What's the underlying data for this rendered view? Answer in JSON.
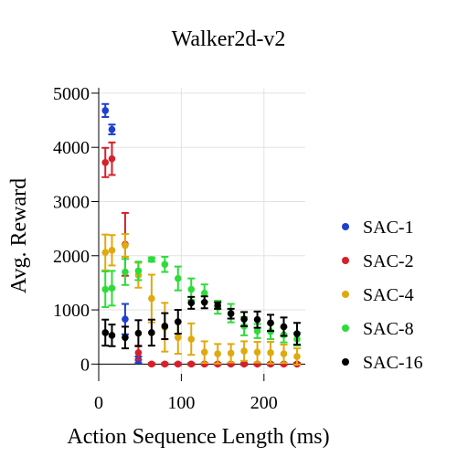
{
  "chart_data": {
    "type": "scatter",
    "title": "Walker2d-v2",
    "xlabel": "Action Sequence Length (ms)",
    "ylabel": "Avg. Reward",
    "xlim": [
      0,
      250
    ],
    "ylim": [
      -180,
      5100
    ],
    "xticks": [
      0,
      100,
      200
    ],
    "yticks": [
      0,
      1000,
      2000,
      3000,
      4000,
      5000
    ],
    "grid": true,
    "legend": "right",
    "series": [
      {
        "name": "SAC-1",
        "color": "#1f3fd0",
        "x": [
          8,
          16,
          32,
          48
        ],
        "y": [
          4680,
          4330,
          830,
          80
        ],
        "err": [
          120,
          90,
          280,
          60
        ]
      },
      {
        "name": "SAC-2",
        "color": "#d81f2a",
        "x": [
          8,
          16,
          32,
          48,
          64,
          80,
          96,
          112,
          128,
          144,
          160,
          176,
          192,
          208,
          224,
          240
        ],
        "y": [
          3720,
          3790,
          2210,
          210,
          0,
          0,
          0,
          0,
          0,
          0,
          0,
          0,
          0,
          0,
          0,
          0
        ],
        "err": [
          270,
          300,
          580,
          130,
          20,
          20,
          20,
          20,
          20,
          20,
          20,
          20,
          20,
          20,
          20,
          20
        ]
      },
      {
        "name": "SAC-4",
        "color": "#e0a90e",
        "x": [
          8,
          16,
          32,
          48,
          64,
          80,
          96,
          112,
          128,
          144,
          160,
          176,
          192,
          208,
          224,
          240
        ],
        "y": [
          2060,
          2100,
          2190,
          1640,
          1210,
          680,
          490,
          460,
          220,
          190,
          200,
          240,
          220,
          210,
          190,
          140
        ],
        "err": [
          330,
          280,
          210,
          230,
          440,
          450,
          300,
          290,
          200,
          180,
          170,
          180,
          190,
          200,
          170,
          150
        ]
      },
      {
        "name": "SAC-8",
        "color": "#2ddc3a",
        "x": [
          8,
          16,
          32,
          48,
          64,
          80,
          96,
          112,
          128,
          144,
          160,
          176,
          192,
          208,
          224,
          240
        ],
        "y": [
          1380,
          1400,
          1700,
          1720,
          1930,
          1840,
          1580,
          1380,
          1310,
          1050,
          940,
          700,
          610,
          600,
          540,
          460
        ],
        "err": [
          330,
          320,
          240,
          170,
          40,
          140,
          220,
          200,
          160,
          120,
          170,
          170,
          130,
          140,
          140,
          120
        ]
      },
      {
        "name": "SAC-16",
        "color": "#000000",
        "x": [
          8,
          16,
          32,
          48,
          64,
          80,
          96,
          112,
          128,
          144,
          160,
          176,
          192,
          208,
          224,
          240
        ],
        "y": [
          580,
          530,
          490,
          570,
          580,
          700,
          780,
          1130,
          1140,
          1080,
          930,
          830,
          820,
          760,
          690,
          560
        ],
        "err": [
          240,
          200,
          200,
          240,
          240,
          240,
          220,
          110,
          110,
          60,
          90,
          130,
          150,
          150,
          170,
          200
        ]
      }
    ]
  }
}
